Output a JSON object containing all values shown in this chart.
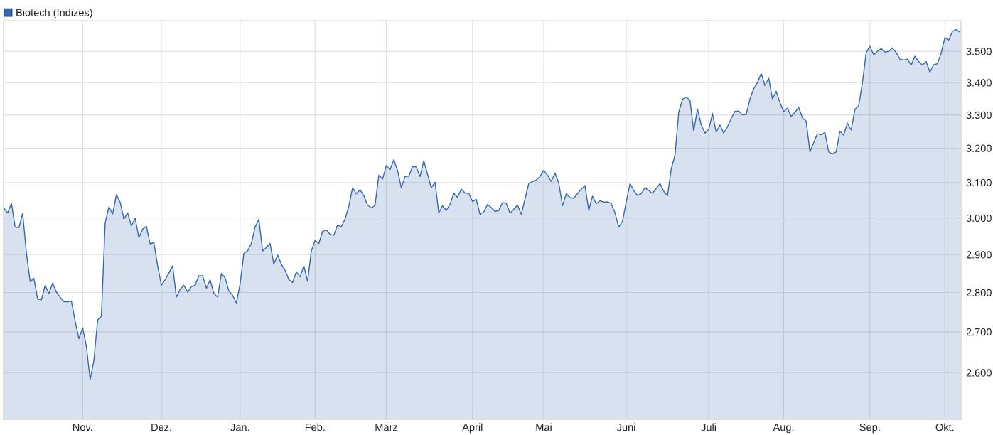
{
  "chart_data": {
    "type": "area",
    "log": true,
    "grid": true,
    "legend": "top left",
    "categories": [
      null,
      null,
      null,
      null,
      null,
      null,
      null,
      null,
      null,
      null,
      null,
      null,
      null,
      null,
      null,
      null,
      null,
      null,
      null,
      null,
      null,
      "Nov.",
      null,
      null,
      null,
      null,
      null,
      null,
      null,
      null,
      null,
      null,
      null,
      null,
      null,
      null,
      null,
      null,
      null,
      null,
      null,
      null,
      "Dez.",
      null,
      null,
      null,
      null,
      null,
      null,
      null,
      null,
      null,
      null,
      null,
      null,
      null,
      null,
      null,
      null,
      null,
      null,
      null,
      null,
      "Jan.",
      null,
      null,
      null,
      null,
      null,
      null,
      null,
      null,
      null,
      null,
      null,
      null,
      null,
      null,
      null,
      null,
      null,
      null,
      null,
      "Feb.",
      null,
      null,
      null,
      null,
      null,
      null,
      null,
      null,
      null,
      null,
      null,
      null,
      null,
      null,
      null,
      null,
      null,
      null,
      "März",
      null,
      null,
      null,
      null,
      null,
      null,
      null,
      null,
      null,
      null,
      null,
      null,
      null,
      null,
      null,
      null,
      null,
      null,
      null,
      null,
      null,
      null,
      "April",
      null,
      null,
      null,
      null,
      null,
      null,
      null,
      null,
      null,
      null,
      null,
      null,
      null,
      null,
      null,
      null,
      null,
      null,
      "Mai",
      null,
      null,
      null,
      null,
      null,
      null,
      null,
      null,
      null,
      null,
      null,
      null,
      null,
      null,
      null,
      null,
      null,
      null,
      null,
      null,
      null,
      "Juni",
      null,
      null,
      null,
      null,
      null,
      null,
      null,
      null,
      null,
      null,
      null,
      null,
      null,
      null,
      null,
      null,
      null,
      null,
      null,
      null,
      null,
      "Juli",
      null,
      null,
      null,
      null,
      null,
      null,
      null,
      null,
      null,
      null,
      null,
      null,
      null,
      null,
      null,
      null,
      null,
      null,
      null,
      "Aug.",
      null,
      null,
      null,
      null,
      null,
      null,
      null,
      null,
      null,
      null,
      null,
      null,
      null,
      null,
      null,
      null,
      null,
      null,
      null,
      null,
      null,
      null,
      "Sep.",
      null,
      null,
      null,
      null,
      null,
      null,
      null,
      null,
      null,
      null,
      null,
      null,
      null,
      null,
      null,
      null,
      null,
      null,
      null,
      "Okt.",
      null,
      null,
      null,
      null
    ],
    "series": [
      {
        "name": "Biotech (Indizes)",
        "color": "#3567ad",
        "values": [
          3027,
          3014,
          3041,
          2975,
          2973,
          3013,
          2904,
          2828,
          2837,
          2783,
          2781,
          2819,
          2797,
          2825,
          2801,
          2788,
          2776,
          2776,
          2778,
          2727,
          2683,
          2710,
          2664,
          2583,
          2630,
          2730,
          2739,
          2986,
          3031,
          3011,
          3065,
          3044,
          2997,
          3014,
          2978,
          2999,
          2946,
          2969,
          2977,
          2929,
          2932,
          2870,
          2819,
          2833,
          2851,
          2870,
          2788,
          2808,
          2819,
          2801,
          2815,
          2819,
          2844,
          2844,
          2811,
          2833,
          2798,
          2788,
          2850,
          2838,
          2804,
          2793,
          2773,
          2822,
          2903,
          2910,
          2930,
          2975,
          2996,
          2910,
          2919,
          2930,
          2874,
          2899,
          2874,
          2858,
          2834,
          2826,
          2854,
          2841,
          2870,
          2829,
          2910,
          2938,
          2930,
          2963,
          2967,
          2955,
          2952,
          2980,
          2976,
          2997,
          3032,
          3085,
          3068,
          3079,
          3063,
          3036,
          3028,
          3035,
          3121,
          3110,
          3149,
          3137,
          3166,
          3135,
          3085,
          3117,
          3118,
          3146,
          3145,
          3117,
          3163,
          3124,
          3085,
          3101,
          3014,
          3034,
          3021,
          3038,
          3069,
          3058,
          3081,
          3070,
          3069,
          3046,
          3052,
          3010,
          3017,
          3038,
          3029,
          3018,
          3021,
          3043,
          3041,
          3013,
          3024,
          3036,
          3010,
          3053,
          3097,
          3103,
          3107,
          3117,
          3135,
          3121,
          3103,
          3127,
          3099,
          3034,
          3068,
          3057,
          3055,
          3068,
          3081,
          3091,
          3021,
          3061,
          3040,
          3048,
          3044,
          3045,
          3040,
          3014,
          2975,
          2991,
          3044,
          3097,
          3077,
          3063,
          3068,
          3085,
          3077,
          3069,
          3083,
          3097,
          3075,
          3062,
          3139,
          3179,
          3308,
          3348,
          3355,
          3345,
          3251,
          3318,
          3270,
          3245,
          3256,
          3304,
          3248,
          3269,
          3245,
          3264,
          3289,
          3311,
          3312,
          3300,
          3301,
          3349,
          3381,
          3400,
          3429,
          3391,
          3414,
          3349,
          3373,
          3338,
          3310,
          3321,
          3295,
          3308,
          3323,
          3291,
          3281,
          3189,
          3216,
          3243,
          3240,
          3247,
          3189,
          3183,
          3189,
          3251,
          3239,
          3275,
          3254,
          3317,
          3328,
          3399,
          3496,
          3516,
          3489,
          3500,
          3509,
          3497,
          3500,
          3511,
          3496,
          3475,
          3472,
          3475,
          3456,
          3484,
          3467,
          3456,
          3467,
          3433,
          3457,
          3460,
          3494,
          3545,
          3536,
          3565,
          3571,
          3563
        ]
      }
    ],
    "ylim": [
      2490,
      3600
    ],
    "yticks": [
      {
        "value": 2600,
        "label": "2.600"
      },
      {
        "value": 2700,
        "label": "2.700"
      },
      {
        "value": 2800,
        "label": "2.800"
      },
      {
        "value": 2900,
        "label": "2.900"
      },
      {
        "value": 3000,
        "label": "3.000"
      },
      {
        "value": 3100,
        "label": "3.100"
      },
      {
        "value": 3200,
        "label": "3.200"
      },
      {
        "value": 3300,
        "label": "3.300"
      },
      {
        "value": 3400,
        "label": "3.400"
      },
      {
        "value": 3500,
        "label": "3.500"
      }
    ]
  }
}
